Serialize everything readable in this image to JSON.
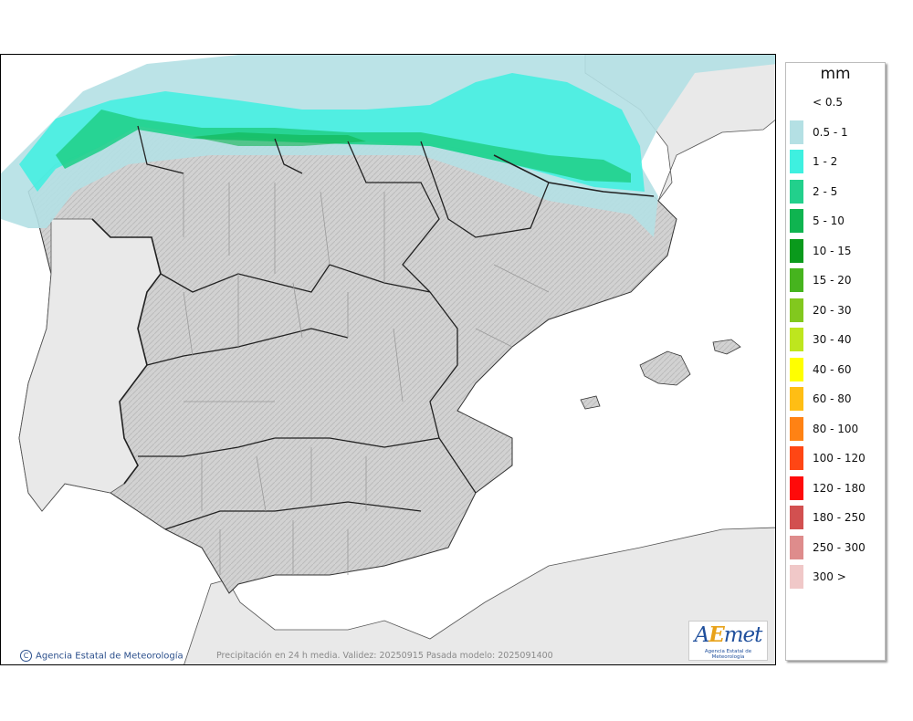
{
  "legend": {
    "unit": "mm",
    "items": [
      {
        "label": "< 0.5",
        "color": "#ffffff"
      },
      {
        "label": "0.5 - 1",
        "color": "#b4e0e4"
      },
      {
        "label": "1 - 2",
        "color": "#3ef0e0"
      },
      {
        "label": "2 - 5",
        "color": "#22d08c"
      },
      {
        "label": "5 - 10",
        "color": "#0fb450"
      },
      {
        "label": "10 - 15",
        "color": "#0a9a1c"
      },
      {
        "label": "15 - 20",
        "color": "#46b41e"
      },
      {
        "label": "20 - 30",
        "color": "#82c81e"
      },
      {
        "label": "30 - 40",
        "color": "#bee61e"
      },
      {
        "label": "40 - 60",
        "color": "#ffff00"
      },
      {
        "label": "60 - 80",
        "color": "#ffbe14"
      },
      {
        "label": "80 - 100",
        "color": "#ff8214"
      },
      {
        "label": "100 - 120",
        "color": "#ff4614"
      },
      {
        "label": "120 - 180",
        "color": "#ff0a0a"
      },
      {
        "label": "180 - 250",
        "color": "#d25050"
      },
      {
        "label": "250 - 300",
        "color": "#de8c8c"
      },
      {
        "label": "300 >",
        "color": "#f0c8c8"
      }
    ]
  },
  "credit": "Agencia Estatal de Meteorología",
  "credit_symbol": "C",
  "caption": "Precipitación en 24 h media. Validez: 20250915 Pasada modelo: 2025091400",
  "logo": {
    "word_start": "A",
    "word_accent": "E",
    "word_end": "met",
    "subtitle": "Agencia Estatal de Meteorología"
  },
  "colors": {
    "sea": "#ffffff",
    "land": "#d4d4d4",
    "foreign_land": "#e9e9e9",
    "border": "#222222",
    "province": "#9a9a9a"
  }
}
